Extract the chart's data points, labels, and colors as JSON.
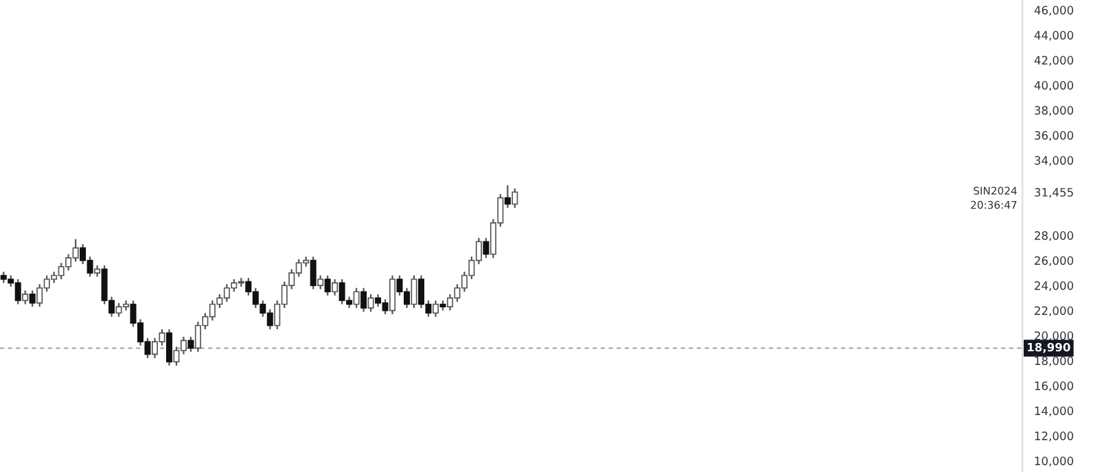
{
  "chart_data": {
    "type": "candlestick",
    "categories": [
      null,
      null,
      null,
      null,
      null,
      null,
      null,
      null,
      null,
      null,
      null,
      null,
      null,
      null,
      null,
      null,
      null,
      null,
      null,
      null,
      null,
      null,
      null,
      null,
      null,
      null,
      null,
      null,
      null,
      null,
      null,
      null,
      null,
      null,
      null,
      null,
      null,
      null,
      null,
      null,
      null,
      null,
      null,
      null,
      null,
      null,
      null,
      null,
      null,
      null,
      null,
      null,
      null,
      null,
      null,
      null,
      null,
      null,
      null,
      null,
      null,
      null,
      null,
      null,
      null,
      null,
      null,
      null,
      null,
      null,
      null,
      null,
      null,
      null,
      null,
      null,
      null,
      null,
      null,
      null,
      null,
      null,
      null,
      null,
      null,
      null,
      null,
      null,
      null,
      null,
      null,
      null,
      null,
      null,
      null,
      null,
      null,
      null,
      null,
      null,
      null,
      null,
      null,
      null,
      null,
      null,
      null,
      null,
      null,
      null,
      null,
      null,
      null,
      null,
      null,
      null,
      null,
      null,
      null,
      null,
      null,
      null,
      null,
      null,
      null,
      null,
      null,
      null,
      null,
      null,
      null,
      null,
      null,
      null,
      null,
      null,
      null,
      null,
      null,
      null,
      null,
      null
    ],
    "ohlc": [
      [
        24800,
        25100,
        24200,
        24500
      ],
      [
        24500,
        24800,
        23900,
        24200
      ],
      [
        24200,
        24500,
        22500,
        22800
      ],
      [
        22800,
        23600,
        22500,
        23300
      ],
      [
        23300,
        23600,
        22300,
        22600
      ],
      [
        22600,
        24100,
        22300,
        23800
      ],
      [
        23800,
        24800,
        23500,
        24500
      ],
      [
        24500,
        25100,
        24200,
        24800
      ],
      [
        24800,
        25800,
        24500,
        25500
      ],
      [
        25500,
        26500,
        25200,
        26200
      ],
      [
        26200,
        27700,
        25900,
        27000
      ],
      [
        27000,
        27300,
        25700,
        26000
      ],
      [
        26000,
        26300,
        24700,
        25000
      ],
      [
        25000,
        25600,
        24700,
        25300
      ],
      [
        25300,
        25600,
        22500,
        22800
      ],
      [
        22800,
        23100,
        21500,
        21800
      ],
      [
        21800,
        22600,
        21500,
        22300
      ],
      [
        22300,
        22800,
        22000,
        22500
      ],
      [
        22500,
        22800,
        20700,
        21000
      ],
      [
        21000,
        21300,
        19200,
        19500
      ],
      [
        19500,
        19800,
        18200,
        18500
      ],
      [
        18500,
        19800,
        18200,
        19500
      ],
      [
        19500,
        20500,
        19200,
        20200
      ],
      [
        20200,
        20500,
        17600,
        17900
      ],
      [
        17900,
        19100,
        17600,
        18800
      ],
      [
        18800,
        19900,
        18500,
        19600
      ],
      [
        19600,
        19900,
        18700,
        19000
      ],
      [
        19000,
        21100,
        18700,
        20800
      ],
      [
        20800,
        21800,
        20500,
        21500
      ],
      [
        21500,
        22800,
        21200,
        22500
      ],
      [
        22500,
        23300,
        22200,
        23000
      ],
      [
        23000,
        24100,
        22700,
        23800
      ],
      [
        23800,
        24500,
        23500,
        24200
      ],
      [
        24200,
        24600,
        23900,
        24300
      ],
      [
        24300,
        24600,
        23200,
        23500
      ],
      [
        23500,
        23800,
        22200,
        22500
      ],
      [
        22500,
        22800,
        21500,
        21800
      ],
      [
        21800,
        22100,
        20500,
        20800
      ],
      [
        20800,
        22800,
        20500,
        22500
      ],
      [
        22500,
        24300,
        22200,
        24000
      ],
      [
        24000,
        25300,
        23700,
        25000
      ],
      [
        25000,
        26100,
        24700,
        25800
      ],
      [
        25800,
        26300,
        25500,
        26000
      ],
      [
        26000,
        26300,
        23700,
        24000
      ],
      [
        24000,
        24800,
        23700,
        24500
      ],
      [
        24500,
        24800,
        23200,
        23500
      ],
      [
        23500,
        24500,
        23200,
        24200
      ],
      [
        24200,
        24500,
        22500,
        22800
      ],
      [
        22800,
        23100,
        22200,
        22500
      ],
      [
        22500,
        23800,
        22200,
        23500
      ],
      [
        23500,
        23800,
        21900,
        22200
      ],
      [
        22200,
        23300,
        21900,
        23000
      ],
      [
        23000,
        23300,
        22300,
        22600
      ],
      [
        22600,
        22900,
        21700,
        22000
      ],
      [
        22000,
        24800,
        21700,
        24500
      ],
      [
        24500,
        24800,
        23200,
        23500
      ],
      [
        23500,
        23800,
        22200,
        22500
      ],
      [
        22500,
        24800,
        22200,
        24500
      ],
      [
        24500,
        24800,
        22200,
        22500
      ],
      [
        22500,
        22800,
        21500,
        21800
      ],
      [
        21800,
        22800,
        21500,
        22500
      ],
      [
        22500,
        22800,
        22000,
        22300
      ],
      [
        22300,
        23300,
        22000,
        23000
      ],
      [
        23000,
        24100,
        22700,
        23800
      ],
      [
        23800,
        25100,
        23500,
        24800
      ],
      [
        24800,
        26300,
        24500,
        26000
      ],
      [
        26000,
        27800,
        25700,
        27500
      ],
      [
        27500,
        27800,
        26200,
        26500
      ],
      [
        26500,
        29300,
        26200,
        29000
      ],
      [
        29000,
        31300,
        28700,
        31000
      ],
      [
        31000,
        32000,
        30200,
        30500
      ],
      [
        30500,
        31755,
        30200,
        31455
      ],
      null,
      null,
      null,
      null,
      null,
      null,
      null,
      null,
      null,
      null,
      null,
      null,
      null,
      null,
      null,
      null,
      null,
      null,
      null,
      null,
      null,
      null,
      null,
      null,
      null,
      null,
      null,
      null,
      null,
      null,
      null,
      null,
      null,
      null,
      null,
      null,
      null,
      null,
      null,
      null,
      null,
      null,
      null,
      null,
      null,
      null,
      null,
      null,
      null,
      null,
      null,
      null,
      null,
      null,
      null,
      null,
      null,
      null,
      null,
      null,
      null,
      null,
      null,
      null,
      null,
      null,
      null,
      null,
      null,
      null
    ],
    "ylim": [
      9100,
      46800
    ],
    "yticks": [
      {
        "value": 10000,
        "label": "10,000"
      },
      {
        "value": 12000,
        "label": "12,000"
      },
      {
        "value": 14000,
        "label": "14,000"
      },
      {
        "value": 16000,
        "label": "16,000"
      },
      {
        "value": 18000,
        "label": "18,000"
      },
      {
        "value": 20000,
        "label": "20,000"
      },
      {
        "value": 22000,
        "label": "22,000"
      },
      {
        "value": 24000,
        "label": "24,000"
      },
      {
        "value": 26000,
        "label": "26,000"
      },
      {
        "value": 28000,
        "label": "28,000"
      },
      {
        "value": 31455,
        "label": "31,455"
      },
      {
        "value": 34000,
        "label": "34,000"
      },
      {
        "value": 36000,
        "label": "36,000"
      },
      {
        "value": 38000,
        "label": "38,000"
      },
      {
        "value": 40000,
        "label": "40,000"
      },
      {
        "value": 42000,
        "label": "42,000"
      },
      {
        "value": 44000,
        "label": "44,000"
      },
      {
        "value": 46000,
        "label": "46,000"
      }
    ],
    "ref_lines": [
      {
        "axis": "y",
        "value": 18990,
        "label": "18,990",
        "color": "#9e9e9e",
        "line_style": "dashed"
      }
    ],
    "annotations": [
      "SIN2024",
      "20:36:47"
    ],
    "grid": false
  }
}
